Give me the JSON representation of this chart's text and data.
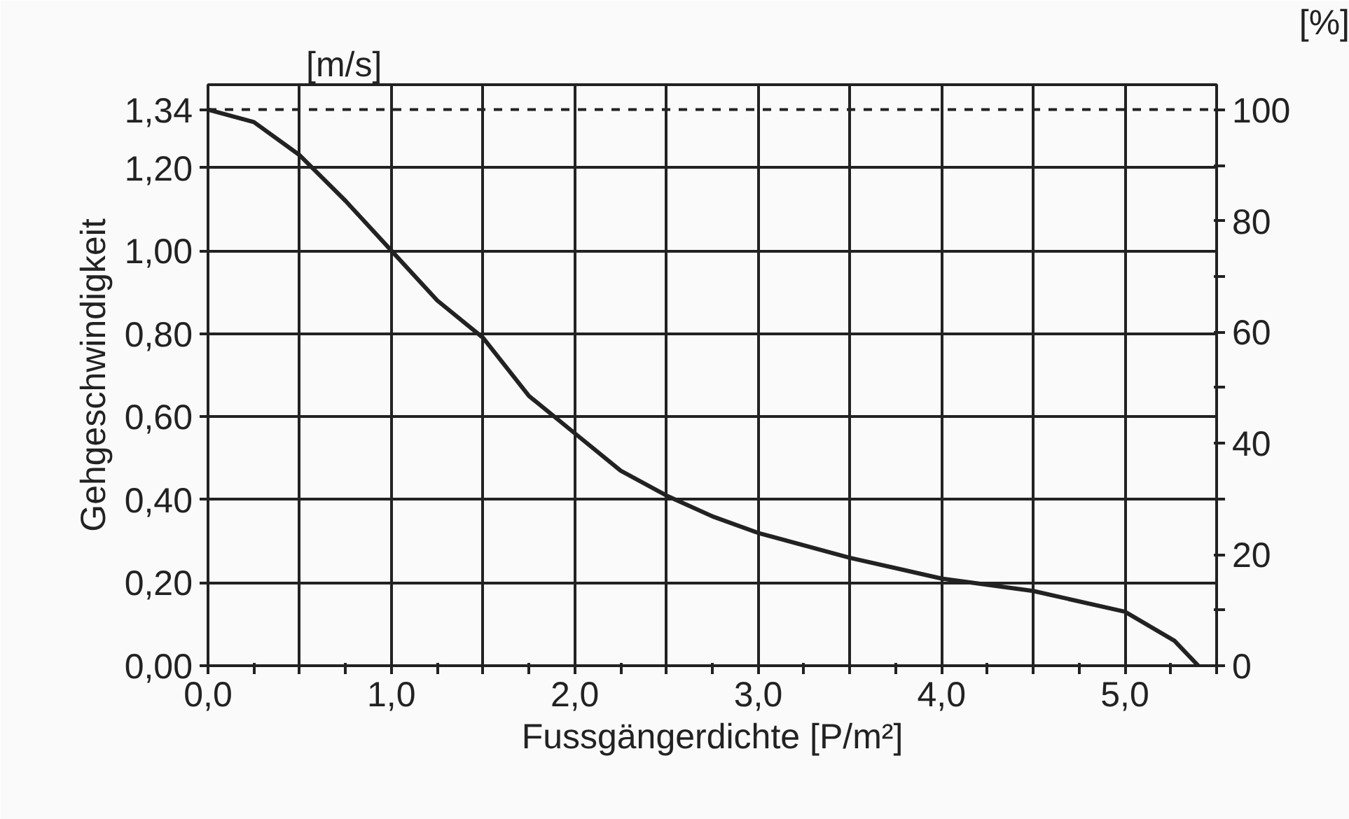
{
  "chart_data": {
    "type": "line",
    "xlabel": "Fussgängerdichte [P/m²]",
    "ylabel": "Gehgeschwindigkeit",
    "annotations": [
      "[m/s]",
      "[%]"
    ],
    "x": [
      0,
      0.25,
      0.5,
      0.75,
      1.0,
      1.25,
      1.5,
      1.75,
      2.0,
      2.25,
      2.5,
      2.75,
      3.0,
      3.5,
      4.0,
      4.5,
      5.0,
      5.27,
      5.4
    ],
    "series": [
      {
        "color": "#222222",
        "values": [
          1.34,
          1.31,
          1.23,
          1.12,
          1.0,
          0.88,
          0.79,
          0.65,
          0.56,
          0.47,
          0.41,
          0.36,
          0.32,
          0.26,
          0.21,
          0.18,
          0.13,
          0.06,
          0
        ]
      }
    ],
    "xlim": [
      0,
      5.5
    ],
    "xticks": [
      {
        "value": 0,
        "label": "0,0"
      },
      {
        "value": 0.25,
        "label": null
      },
      {
        "value": 0.5,
        "label": null
      },
      {
        "value": 0.75,
        "label": null
      },
      {
        "value": 1,
        "label": "1,0"
      },
      {
        "value": 1.25,
        "label": null
      },
      {
        "value": 1.5,
        "label": null
      },
      {
        "value": 1.75,
        "label": null
      },
      {
        "value": 2,
        "label": "2,0"
      },
      {
        "value": 2.25,
        "label": null
      },
      {
        "value": 2.5,
        "label": null
      },
      {
        "value": 2.75,
        "label": null
      },
      {
        "value": 3,
        "label": "3,0"
      },
      {
        "value": 3.25,
        "label": null
      },
      {
        "value": 3.5,
        "label": null
      },
      {
        "value": 3.75,
        "label": null
      },
      {
        "value": 4,
        "label": "4,0"
      },
      {
        "value": 4.25,
        "label": null
      },
      {
        "value": 4.5,
        "label": null
      },
      {
        "value": 4.75,
        "label": null
      },
      {
        "value": 5,
        "label": "5,0"
      },
      {
        "value": 5.25,
        "label": null
      },
      {
        "value": 5.5,
        "label": null
      }
    ],
    "ylim": [
      0,
      1.4
    ],
    "yticks": [
      {
        "value": 0,
        "label": "0,00"
      },
      {
        "value": 0.2,
        "label": "0,20"
      },
      {
        "value": 0.4,
        "label": "0,40"
      },
      {
        "value": 0.6,
        "label": "0,60"
      },
      {
        "value": 0.8,
        "label": "0,80"
      },
      {
        "value": 1.0,
        "label": "1,00"
      },
      {
        "value": 1.2,
        "label": "1,20"
      },
      {
        "value": 1.34,
        "label": "1,34"
      }
    ],
    "y2lim": [
      0,
      104.5
    ],
    "y2ticks": [
      0,
      {
        "value": 10,
        "label": null
      },
      20,
      {
        "value": 30,
        "label": null
      },
      40,
      {
        "value": 50,
        "label": null
      },
      60,
      {
        "value": 70,
        "label": null
      },
      80,
      {
        "value": 90,
        "label": null
      },
      100
    ],
    "ref_lines": [
      {
        "axis": "y",
        "value": 1.34,
        "line_style": "dashed",
        "color": "#222222"
      }
    ],
    "grid": true,
    "line_style": "solid"
  }
}
